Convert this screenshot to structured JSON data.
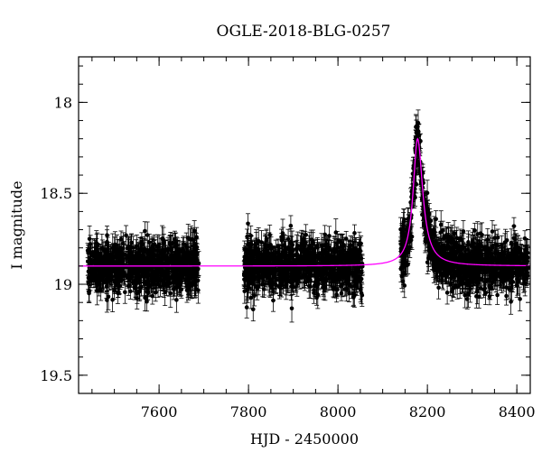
{
  "chart_data": {
    "type": "scatter",
    "title": "OGLE-2018-BLG-0257",
    "xlabel": "HJD - 2450000",
    "ylabel": "I magnitude",
    "xlim": [
      7420,
      8430
    ],
    "ylim": [
      19.6,
      17.75
    ],
    "y_inverted": true,
    "x_ticks": [
      7600,
      7800,
      8000,
      8200,
      8400
    ],
    "x_tick_labels": [
      "7600",
      "7800",
      "8000",
      "8200",
      "8400"
    ],
    "y_ticks": [
      18,
      18.5,
      19,
      19.5
    ],
    "y_tick_labels": [
      "18",
      "18.5",
      "19",
      "19.5"
    ],
    "x_minor_step": 50,
    "y_minor_step": 0.1,
    "grid": false,
    "legend": "none",
    "series": [
      {
        "kind": "points_with_errorbars",
        "color": "#000000",
        "baseline_mag": 18.9,
        "typical_scatter": 0.07,
        "typical_error": 0.055,
        "segments": [
          {
            "x_start": 7440,
            "x_end": 7690
          },
          {
            "x_start": 7790,
            "x_end": 8055
          },
          {
            "x_start": 8140,
            "x_end": 8425
          }
        ],
        "sample_points": [
          {
            "x": 7450,
            "y": 18.92
          },
          {
            "x": 7500,
            "y": 18.88
          },
          {
            "x": 7550,
            "y": 18.95
          },
          {
            "x": 7600,
            "y": 18.9
          },
          {
            "x": 7650,
            "y": 18.87
          },
          {
            "x": 7690,
            "y": 18.93
          },
          {
            "x": 7800,
            "y": 18.91
          },
          {
            "x": 7850,
            "y": 18.89
          },
          {
            "x": 7900,
            "y": 18.92
          },
          {
            "x": 7950,
            "y": 18.88
          },
          {
            "x": 8000,
            "y": 18.9
          },
          {
            "x": 8050,
            "y": 18.95
          },
          {
            "x": 8150,
            "y": 18.78
          },
          {
            "x": 8165,
            "y": 18.45
          },
          {
            "x": 8175,
            "y": 18.2
          },
          {
            "x": 8180,
            "y": 18.25
          },
          {
            "x": 8190,
            "y": 18.55
          },
          {
            "x": 8200,
            "y": 18.72
          },
          {
            "x": 8250,
            "y": 18.88
          },
          {
            "x": 8300,
            "y": 18.9
          },
          {
            "x": 8350,
            "y": 18.91
          },
          {
            "x": 8420,
            "y": 18.89
          }
        ]
      },
      {
        "kind": "model_curve",
        "color": "#ff00ff",
        "t0": 8178,
        "peak_mag": 18.2,
        "baseline_mag": 18.9,
        "rise_width": 12,
        "decay_width": 14,
        "curve_points": [
          {
            "x": 7420,
            "y": 18.9
          },
          {
            "x": 8100,
            "y": 18.9
          },
          {
            "x": 8140,
            "y": 18.87
          },
          {
            "x": 8160,
            "y": 18.6
          },
          {
            "x": 8178,
            "y": 18.2
          },
          {
            "x": 8195,
            "y": 18.55
          },
          {
            "x": 8220,
            "y": 18.82
          },
          {
            "x": 8260,
            "y": 18.89
          },
          {
            "x": 8430,
            "y": 18.9
          }
        ]
      }
    ]
  }
}
